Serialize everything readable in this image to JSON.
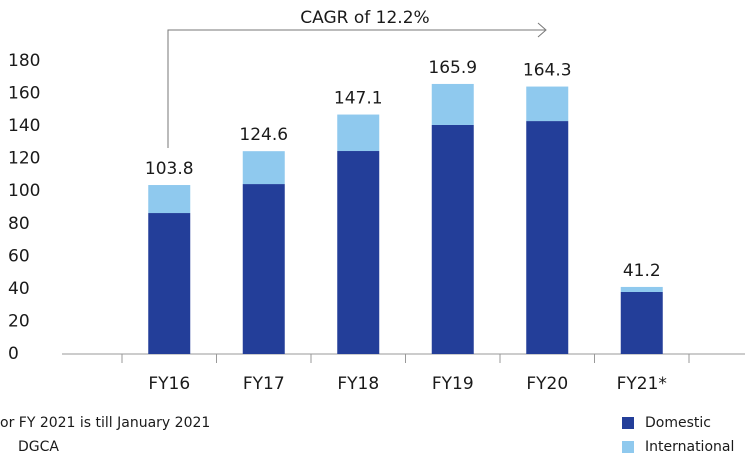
{
  "chart_data": {
    "type": "stacked_bar",
    "annotation": "CAGR of 12.2%",
    "categories": [
      "FY16",
      "FY17",
      "FY18",
      "FY19",
      "FY20",
      "FY21*"
    ],
    "series": [
      {
        "name": "Domestic",
        "color": "#233e99",
        "values": [
          86.6,
          104.4,
          124.7,
          140.7,
          143.1,
          38.1
        ]
      },
      {
        "name": "International",
        "color": "#8fc9ee",
        "values": [
          17.2,
          20.2,
          22.4,
          25.2,
          21.2,
          3.1
        ]
      }
    ],
    "totals": [
      103.8,
      124.6,
      147.1,
      165.9,
      164.3,
      41.2
    ],
    "ylim": [
      0,
      180
    ],
    "yticks": [
      0,
      20,
      40,
      60,
      80,
      100,
      120,
      140,
      160,
      180
    ],
    "footnotes": [
      "or FY 2021 is till January 2021",
      "DGCA"
    ]
  }
}
